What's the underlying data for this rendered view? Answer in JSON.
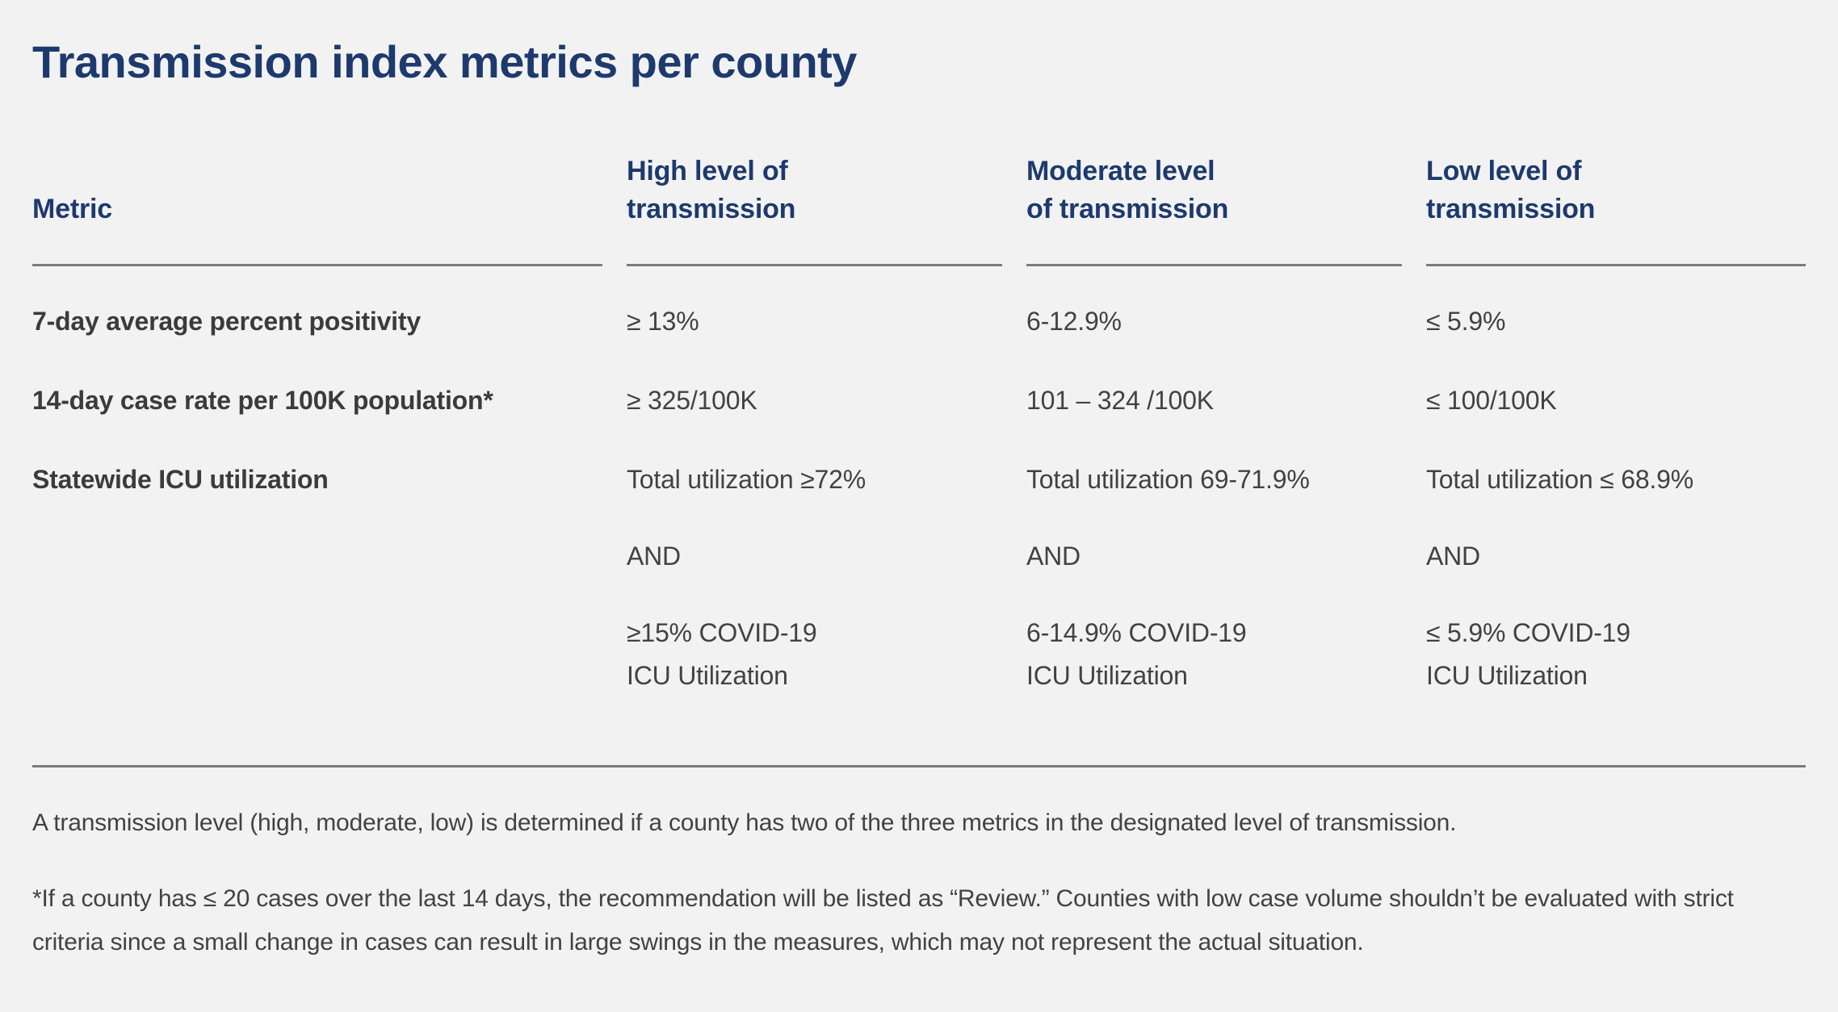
{
  "colors": {
    "background": "#f2f2f2",
    "navy": "#1d3a6e",
    "text": "#424242",
    "label": "#3b3b3b",
    "line": "#7b7b7b"
  },
  "page": {
    "title": "Transmission index metrics per county"
  },
  "table": {
    "columns": [
      {
        "line1": "Metric",
        "line2": ""
      },
      {
        "line1": "High level of",
        "line2": "transmission"
      },
      {
        "line1": "Moderate level",
        "line2": "of transmission"
      },
      {
        "line1": "Low level of",
        "line2": "transmission"
      }
    ],
    "rows": [
      {
        "metric": "7-day average percent positivity",
        "high": "≥ 13%",
        "moderate": "6-12.9%",
        "low": "≤ 5.9%"
      },
      {
        "metric": "14-day case rate per 100K population*",
        "high": "≥ 325/100K",
        "moderate": "101 – 324 /100K",
        "low": "≤ 100/100K"
      },
      {
        "metric": "Statewide ICU utilization",
        "high": {
          "total": "Total utilization ≥72%",
          "conjunction": "AND",
          "covid_line1": "≥15% COVID-19",
          "covid_line2": "ICU Utilization"
        },
        "moderate": {
          "total": "Total utilization 69-71.9%",
          "conjunction": "AND",
          "covid_line1": "6-14.9% COVID-19",
          "covid_line2": "ICU Utilization"
        },
        "low": {
          "total": "Total utilization ≤ 68.9%",
          "conjunction": "AND",
          "covid_line1": "≤ 5.9% COVID-19",
          "covid_line2": "ICU Utilization"
        }
      }
    ]
  },
  "footnotes": {
    "note1": "A transmission level (high, moderate, low) is determined if a county has two of the three metrics in the designated level of transmission.",
    "note2": "*If a county has ≤ 20 cases over the last 14 days, the recommendation will be listed as “Review.” Counties with low case volume shouldn’t be evaluated with strict criteria since a small change in cases can result in large swings in the measures, which may not represent the actual situation."
  }
}
